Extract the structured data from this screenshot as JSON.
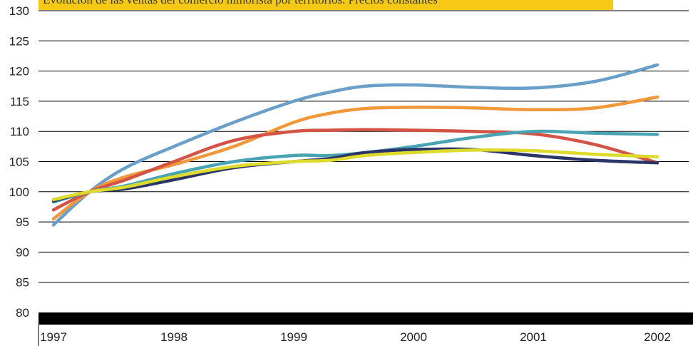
{
  "chart_data": {
    "type": "line",
    "title": "Evolución de las ventas del comercio minorista por territorios. Precios constantes",
    "xlabel": "",
    "ylabel": "",
    "ylim": [
      80,
      130
    ],
    "xlim": [
      1997,
      2002
    ],
    "yticks": [
      80,
      85,
      90,
      95,
      100,
      105,
      110,
      115,
      120,
      125,
      130
    ],
    "xticks": [
      "1997",
      "1998",
      "1999",
      "2000",
      "2001",
      "2002"
    ],
    "grid": "horizontal",
    "legend": "none",
    "series": [
      {
        "color": "#6a9fc9",
        "x": [
          1997,
          1997.3,
          1997.6,
          1998,
          1998.5,
          1999,
          1999.3,
          1999.6,
          2000,
          2000.5,
          2001,
          2001.5,
          2002
        ],
        "y": [
          94.5,
          100,
          104,
          107.5,
          111.5,
          115,
          116.5,
          117.5,
          117.7,
          117.3,
          117.2,
          118.3,
          121
        ]
      },
      {
        "color": "#f0983a",
        "x": [
          1997,
          1997.3,
          1997.6,
          1998,
          1998.5,
          1999,
          1999.3,
          1999.6,
          2000,
          2000.5,
          2001,
          2001.5,
          2002
        ],
        "y": [
          95.5,
          100,
          102.5,
          104.5,
          107.5,
          111.5,
          113,
          113.8,
          114,
          113.9,
          113.6,
          113.9,
          115.7
        ]
      },
      {
        "color": "#d35445",
        "x": [
          1997,
          1997.3,
          1997.6,
          1998,
          1998.5,
          1999,
          1999.3,
          1999.6,
          2000,
          2000.5,
          2001,
          2001.5,
          2002
        ],
        "y": [
          97,
          100,
          102,
          105,
          108.5,
          110,
          110.2,
          110.3,
          110.2,
          110,
          109.6,
          107.8,
          104.8
        ]
      },
      {
        "color": "#48a3b3",
        "x": [
          1997,
          1997.3,
          1997.6,
          1998,
          1998.5,
          1999,
          1999.3,
          1999.6,
          2000,
          2000.5,
          2001,
          2001.5,
          2002
        ],
        "y": [
          98.3,
          100,
          101,
          103,
          105,
          106,
          106,
          106.5,
          107.5,
          109,
          110,
          109.7,
          109.5
        ]
      },
      {
        "color": "#2c3567",
        "x": [
          1997,
          1997.3,
          1997.6,
          1998,
          1998.5,
          1999,
          1999.3,
          1999.6,
          2000,
          2000.5,
          2001,
          2001.5,
          2002
        ],
        "y": [
          98.5,
          100,
          100.5,
          102,
          104,
          105,
          105.5,
          106.5,
          107,
          107,
          106,
          105.2,
          104.8
        ]
      },
      {
        "color": "#dedb2a",
        "x": [
          1997,
          1997.3,
          1997.6,
          1998,
          1998.5,
          1999,
          1999.3,
          1999.6,
          2000,
          2000.5,
          2001,
          2001.5,
          2002
        ],
        "y": [
          98.7,
          100,
          100.8,
          102.5,
          104.2,
          105,
          105.2,
          106,
          106.5,
          106.9,
          106.8,
          106.2,
          105.8
        ]
      }
    ]
  }
}
